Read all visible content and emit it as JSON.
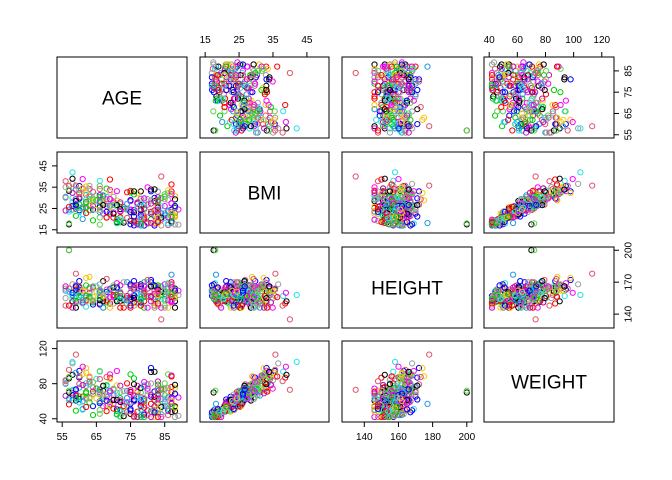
{
  "chart_data": {
    "type": "scatter",
    "subtype": "scatterplot-matrix",
    "variables": [
      "AGE",
      "BMI",
      "HEIGHT",
      "WEIGHT"
    ],
    "ranges": {
      "AGE": [
        55,
        90
      ],
      "BMI": [
        15,
        50
      ],
      "HEIGHT": [
        130,
        200
      ],
      "WEIGHT": [
        40,
        125
      ]
    },
    "ticks": {
      "AGE": [
        55,
        65,
        75,
        85
      ],
      "BMI": [
        15,
        25,
        35,
        45
      ],
      "HEIGHT": [
        140,
        160,
        180,
        200
      ],
      "WEIGHT": [
        40,
        60,
        80,
        100,
        120
      ]
    },
    "tick_labels": {
      "AGE_left": [
        55,
        65,
        75,
        85
      ],
      "AGE_right": [
        55,
        65,
        75,
        85
      ],
      "AGE_bottom": [
        55,
        65,
        75,
        85
      ],
      "BMI_top": [
        15,
        25,
        35,
        45
      ],
      "BMI_left": [
        15,
        25,
        35,
        45
      ],
      "HEIGHT_right": [
        140,
        170,
        200
      ],
      "HEIGHT_bottom": [
        140,
        160,
        180,
        200
      ],
      "WEIGHT_top": [
        40,
        60,
        80,
        100,
        120
      ],
      "WEIGHT_left": [
        40,
        80,
        120
      ]
    },
    "point_colors": [
      "#000000",
      "#DF536B",
      "#61D04F",
      "#2297E6",
      "#28E2E5",
      "#CD0BBC",
      "#F5C710",
      "#9E9E9E",
      "#0000FF",
      "#FF0000",
      "#00CD00",
      "#FF00FF"
    ],
    "marker": "open-circle",
    "grid": false,
    "legend": "none",
    "n_points": 300,
    "relationships": {
      "BMI_WEIGHT": "strong positive",
      "HEIGHT_WEIGHT": "positive",
      "AGE_WEIGHT": "weak negative",
      "AGE_BMI": "weak negative"
    },
    "outliers": [
      {
        "HEIGHT": 200,
        "WEIGHT": 70,
        "BMI": 17.5,
        "AGE": 57
      },
      {
        "HEIGHT": 135,
        "WEIGHT": 73,
        "BMI": 40,
        "AGE": 84
      },
      {
        "HEIGHT": 200,
        "WEIGHT": 72,
        "BMI": 18,
        "AGE": 57
      }
    ]
  }
}
